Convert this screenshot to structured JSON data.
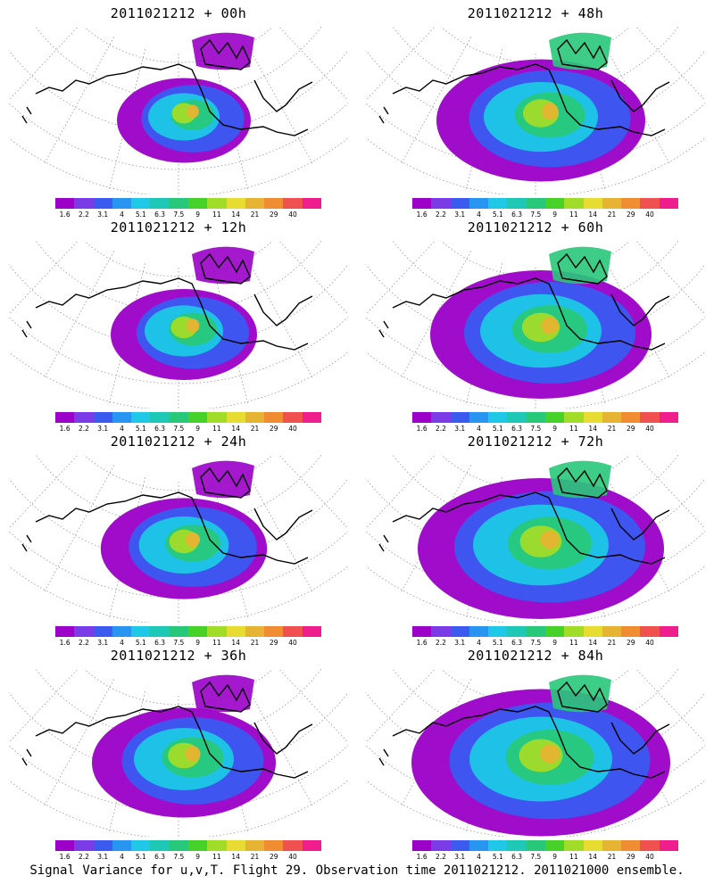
{
  "panels": [
    {
      "title": "2011021212 + 00h",
      "intensity": 0.25
    },
    {
      "title": "2011021212 + 48h",
      "intensity": 0.55
    },
    {
      "title": "2011021212 + 12h",
      "intensity": 0.3
    },
    {
      "title": "2011021212 + 60h",
      "intensity": 0.6
    },
    {
      "title": "2011021212 + 24h",
      "intensity": 0.38
    },
    {
      "title": "2011021212 + 72h",
      "intensity": 0.7
    },
    {
      "title": "2011021212 + 36h",
      "intensity": 0.45
    },
    {
      "title": "2011021212 + 84h",
      "intensity": 0.75
    }
  ],
  "colorbar": {
    "labels": [
      "1.6",
      "2.2",
      "3.1",
      "4",
      "5.1",
      "6.3",
      "7.5",
      "9",
      "11",
      "14",
      "21",
      "29",
      "40"
    ],
    "colors": [
      "#9a00c8",
      "#7a3ce6",
      "#3a5af0",
      "#2896f0",
      "#1ec8e6",
      "#1ec8b4",
      "#28c87a",
      "#46d228",
      "#a0dc28",
      "#e6dc32",
      "#e6b432",
      "#f08c32",
      "#f05050",
      "#f01e8c"
    ]
  },
  "caption": "Signal Variance for u,v,T. Flight 29. Observation time 2011021212. 2011021000 ensemble."
}
